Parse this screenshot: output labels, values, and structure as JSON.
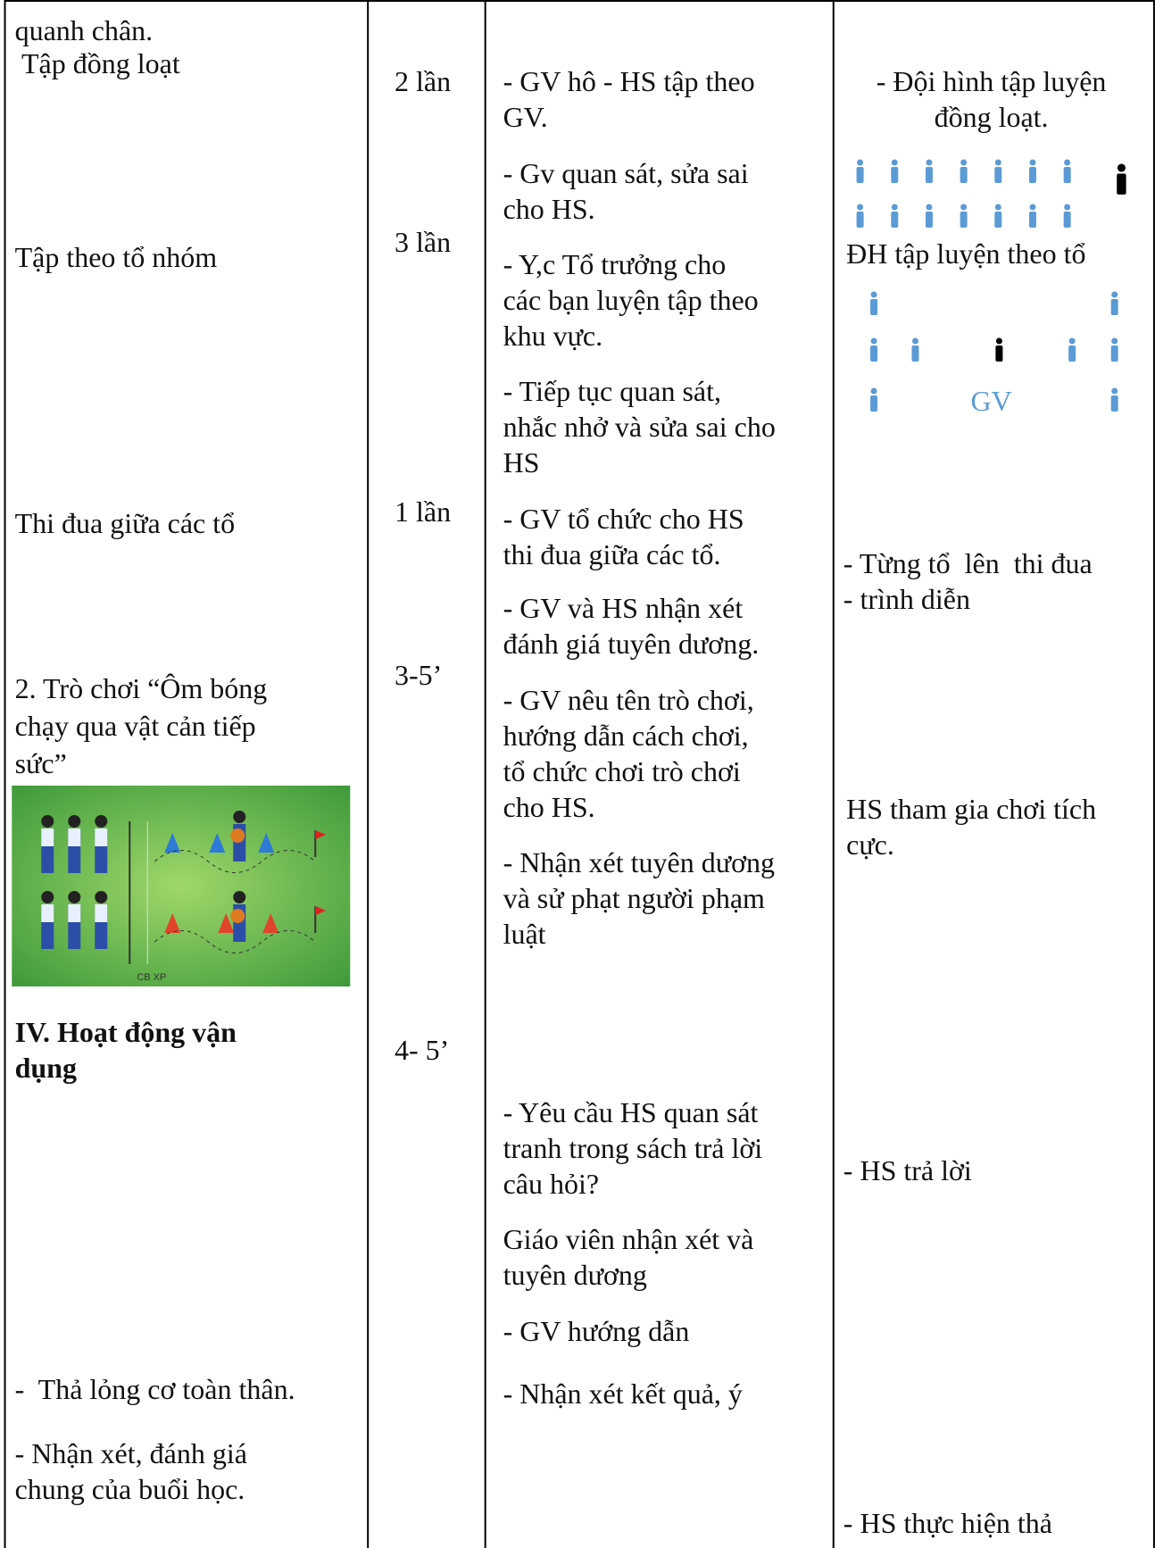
{
  "table": {
    "rows": [
      {
        "content": [
          "quanh chân.",
          " Tập đồng loạt"
        ],
        "dosage": [
          "2 lần"
        ],
        "teacher": [
          [
            "- GV hô - HS tập theo",
            "GV."
          ]
        ],
        "student": [
          [
            "- Đội hình tập luyện",
            "đồng loạt."
          ]
        ]
      },
      {
        "content": [
          "Tập theo tổ nhóm"
        ],
        "dosage": [
          "3 lần"
        ],
        "teacher": [
          [
            "- Gv quan sát, sửa sai",
            "cho HS."
          ],
          [
            "- Y,c Tổ trưởng cho",
            "các bạn luyện tập theo",
            "khu vực."
          ],
          [
            "- Tiếp tục quan sát,",
            "nhắc nhở và sửa sai cho",
            "HS"
          ]
        ],
        "student": [
          [
            "ĐH tập luyện theo tổ"
          ],
          [
            "GV"
          ]
        ]
      },
      {
        "content": [
          "Thi đua giữa các tổ"
        ],
        "dosage": [
          "1 lần"
        ],
        "teacher": [
          [
            "- GV tổ chức cho HS",
            "thi đua giữa các tổ."
          ],
          [
            "- GV và HS nhận xét",
            "đánh giá tuyên dương."
          ]
        ],
        "student": [
          [
            "- Từng tổ  lên  thi đua",
            "- trình diễn"
          ]
        ]
      },
      {
        "content": [
          "2. Trò chơi “Ôm bóng",
          "chạy qua vật cản tiếp",
          "sức”"
        ],
        "image_label": "CB XP",
        "dosage": [
          "3-5’"
        ],
        "teacher": [
          [
            "- GV nêu tên trò chơi,",
            "hướng dẫn cách chơi,",
            "tổ chức chơi trò chơi",
            "cho HS."
          ],
          [
            "- Nhận xét tuyên dương",
            "và sử phạt người phạm",
            "luật"
          ]
        ],
        "student": [
          [
            "HS tham gia chơi tích",
            "cực."
          ]
        ]
      },
      {
        "content": [
          "IV. Hoạt động vận",
          "dụng"
        ],
        "dosage": [
          "4- 5’"
        ],
        "teacher": [
          [
            "- Yêu cầu HS quan sát",
            "tranh trong sách trả lời",
            "câu hỏi?"
          ],
          [
            "Giáo viên nhận xét và",
            "tuyên dương"
          ]
        ],
        "student": [
          [
            "- HS trả lời"
          ]
        ]
      },
      {
        "content": [
          "-  Thả lỏng cơ toàn thân.",
          "- Nhận xét, đánh giá",
          "chung của buổi học."
        ],
        "dosage": [],
        "teacher": [
          [
            "- GV hướng dẫn"
          ],
          [
            "- Nhận xét kết quả, ý"
          ]
        ],
        "student": [
          [
            "- HS thực hiện thả"
          ]
        ]
      }
    ]
  }
}
